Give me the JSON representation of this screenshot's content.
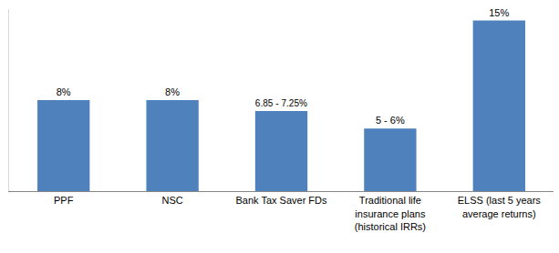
{
  "chart_data": {
    "type": "bar",
    "categories": [
      "PPF",
      "NSC",
      "Bank Tax Saver FDs",
      "Traditional life\ninsurance plans\n(historical IRRs)",
      "ELSS (last 5 years\naverage returns)"
    ],
    "values": [
      8,
      8,
      7.05,
      5.5,
      15
    ],
    "value_labels": [
      "8%",
      "8%",
      "6.85 - 7.25%",
      "5 - 6%",
      "15%"
    ],
    "color": "#4f81bd",
    "ylim": [
      0,
      16
    ],
    "grid": false,
    "data_labels": true,
    "tick_labels": "x"
  }
}
